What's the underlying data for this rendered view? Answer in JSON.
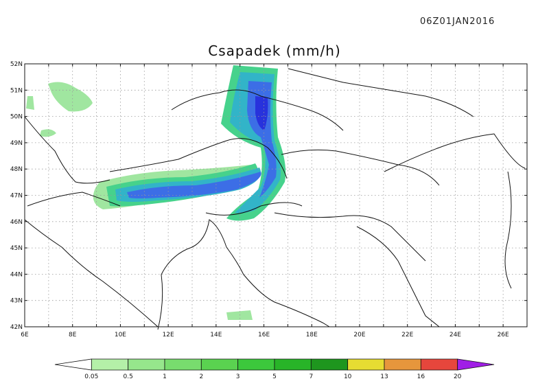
{
  "timestamp": "06Z01JAN2016",
  "title": "Csapadek (mm/h)",
  "lat_labels": [
    "52N",
    "51N",
    "50N",
    "49N",
    "48N",
    "47N",
    "46N",
    "45N",
    "44N",
    "43N",
    "42N"
  ],
  "lon_labels": [
    "6E",
    "8E",
    "10E",
    "12E",
    "14E",
    "16E",
    "18E",
    "20E",
    "22E",
    "24E",
    "26E"
  ],
  "map_extent": {
    "lon": [
      6,
      27
    ],
    "lat": [
      42,
      52
    ]
  },
  "grid": "dotted",
  "colorbar": {
    "levels": [
      "0.05",
      "0.5",
      "1",
      "2",
      "3",
      "5",
      "7",
      "10",
      "13",
      "16",
      "20"
    ],
    "colors": [
      "#ffffff",
      "#b4f0a8",
      "#96e68c",
      "#78dc6e",
      "#5ad250",
      "#3cc83c",
      "#28b428",
      "#1e961e",
      "#e6dc32",
      "#e6963c",
      "#e6463c",
      "#a01ee6"
    ]
  },
  "precip_colors": {
    "light": "#a0e6a0",
    "mid": "#46d28c",
    "teal": "#32b4c8",
    "blue": "#3c6ee6",
    "deep": "#2832dc"
  }
}
